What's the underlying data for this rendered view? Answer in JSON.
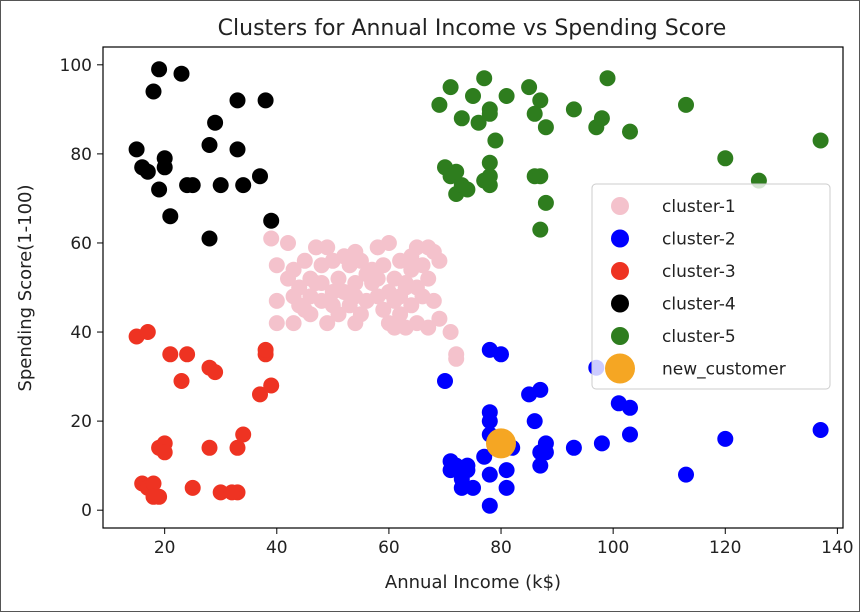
{
  "chart_data": {
    "type": "scatter",
    "title": "Clusters for Annual Income vs Spending Score",
    "xlabel": "Annual Income (k$)",
    "ylabel": "Spending Score(1-100)",
    "xlim": [
      9,
      141
    ],
    "ylim": [
      -4,
      104
    ],
    "xticks": [
      20,
      40,
      60,
      80,
      100,
      120,
      140
    ],
    "yticks": [
      0,
      20,
      40,
      60,
      80,
      100
    ],
    "grid": false,
    "legend_position": "right",
    "series": [
      {
        "name": "cluster-1",
        "color": "#f4c2cc",
        "points": [
          [
            39,
            61
          ],
          [
            40,
            55
          ],
          [
            40,
            47
          ],
          [
            40,
            42
          ],
          [
            42,
            52
          ],
          [
            42,
            60
          ],
          [
            43,
            54
          ],
          [
            43,
            48
          ],
          [
            43,
            42
          ],
          [
            44,
            50
          ],
          [
            44,
            46
          ],
          [
            45,
            56
          ],
          [
            46,
            52
          ],
          [
            46,
            48
          ],
          [
            46,
            44
          ],
          [
            47,
            59
          ],
          [
            48,
            55
          ],
          [
            48,
            47
          ],
          [
            48,
            51
          ],
          [
            49,
            59
          ],
          [
            49,
            42
          ],
          [
            50,
            56
          ],
          [
            50,
            49
          ],
          [
            50,
            46
          ],
          [
            51,
            52
          ],
          [
            52,
            57
          ],
          [
            52,
            49
          ],
          [
            53,
            55
          ],
          [
            54,
            58
          ],
          [
            54,
            48
          ],
          [
            54,
            51
          ],
          [
            54,
            42
          ],
          [
            55,
            44
          ],
          [
            55,
            56
          ],
          [
            56,
            47
          ],
          [
            57,
            54
          ],
          [
            57,
            51
          ],
          [
            58,
            59
          ],
          [
            58,
            48
          ],
          [
            59,
            55
          ],
          [
            60,
            60
          ],
          [
            60,
            49
          ],
          [
            60,
            42
          ],
          [
            61,
            52
          ],
          [
            61,
            47
          ],
          [
            61,
            41
          ],
          [
            62,
            56
          ],
          [
            62,
            44
          ],
          [
            63,
            41
          ],
          [
            63,
            51
          ],
          [
            64,
            57
          ],
          [
            64,
            46
          ],
          [
            65,
            59
          ],
          [
            65,
            50
          ],
          [
            65,
            42
          ],
          [
            66,
            55
          ],
          [
            66,
            48
          ],
          [
            67,
            59
          ],
          [
            67,
            52
          ],
          [
            67,
            41
          ],
          [
            68,
            58
          ],
          [
            69,
            43
          ],
          [
            69,
            56
          ],
          [
            71,
            40
          ],
          [
            72,
            35
          ],
          [
            72,
            34
          ],
          [
            64,
            54
          ],
          [
            62,
            48
          ],
          [
            59,
            45
          ],
          [
            56,
            53
          ],
          [
            53,
            46
          ],
          [
            51,
            44
          ],
          [
            47,
            51
          ],
          [
            45,
            45
          ],
          [
            58,
            52
          ],
          [
            68,
            47
          ],
          [
            63,
            50
          ]
        ]
      },
      {
        "name": "cluster-2",
        "color": "#0000ff",
        "points": [
          [
            70,
            29
          ],
          [
            71,
            11
          ],
          [
            71,
            9
          ],
          [
            72,
            10
          ],
          [
            73,
            5
          ],
          [
            73,
            7
          ],
          [
            74,
            10
          ],
          [
            75,
            5
          ],
          [
            77,
            12
          ],
          [
            78,
            36
          ],
          [
            78,
            22
          ],
          [
            78,
            20
          ],
          [
            78,
            17
          ],
          [
            78,
            1
          ],
          [
            79,
            14
          ],
          [
            80,
            35
          ],
          [
            81,
            5
          ],
          [
            81,
            9
          ],
          [
            82,
            14
          ],
          [
            85,
            26
          ],
          [
            86,
            20
          ],
          [
            87,
            27
          ],
          [
            87,
            10
          ],
          [
            87,
            13
          ],
          [
            88,
            15
          ],
          [
            88,
            13
          ],
          [
            93,
            14
          ],
          [
            97,
            32
          ],
          [
            98,
            15
          ],
          [
            101,
            24
          ],
          [
            103,
            23
          ],
          [
            103,
            17
          ],
          [
            113,
            8
          ],
          [
            120,
            16
          ],
          [
            137,
            18
          ],
          [
            78,
            8
          ],
          [
            74,
            9
          ]
        ]
      },
      {
        "name": "cluster-3",
        "color": "#ee3322",
        "points": [
          [
            15,
            39
          ],
          [
            16,
            6
          ],
          [
            17,
            40
          ],
          [
            17,
            5
          ],
          [
            18,
            6
          ],
          [
            19,
            3
          ],
          [
            19,
            14
          ],
          [
            20,
            15
          ],
          [
            20,
            13
          ],
          [
            21,
            35
          ],
          [
            23,
            29
          ],
          [
            24,
            35
          ],
          [
            25,
            5
          ],
          [
            28,
            32
          ],
          [
            28,
            14
          ],
          [
            29,
            31
          ],
          [
            30,
            4
          ],
          [
            33,
            4
          ],
          [
            33,
            14
          ],
          [
            34,
            17
          ],
          [
            37,
            26
          ],
          [
            38,
            35
          ],
          [
            38,
            36
          ],
          [
            39,
            28
          ],
          [
            18,
            3
          ],
          [
            32,
            4
          ]
        ]
      },
      {
        "name": "cluster-4",
        "color": "#000000",
        "points": [
          [
            15,
            81
          ],
          [
            16,
            77
          ],
          [
            17,
            76
          ],
          [
            18,
            94
          ],
          [
            19,
            99
          ],
          [
            19,
            72
          ],
          [
            20,
            77
          ],
          [
            20,
            79
          ],
          [
            21,
            66
          ],
          [
            23,
            98
          ],
          [
            24,
            73
          ],
          [
            25,
            73
          ],
          [
            28,
            82
          ],
          [
            28,
            61
          ],
          [
            29,
            87
          ],
          [
            30,
            73
          ],
          [
            33,
            92
          ],
          [
            33,
            81
          ],
          [
            34,
            73
          ],
          [
            37,
            75
          ],
          [
            38,
            92
          ],
          [
            39,
            65
          ]
        ]
      },
      {
        "name": "cluster-5",
        "color": "#2e7d1e",
        "points": [
          [
            69,
            91
          ],
          [
            70,
            77
          ],
          [
            71,
            95
          ],
          [
            71,
            75
          ],
          [
            72,
            71
          ],
          [
            73,
            88
          ],
          [
            73,
            73
          ],
          [
            75,
            93
          ],
          [
            76,
            87
          ],
          [
            77,
            97
          ],
          [
            77,
            74
          ],
          [
            78,
            90
          ],
          [
            78,
            89
          ],
          [
            78,
            78
          ],
          [
            78,
            73
          ],
          [
            79,
            83
          ],
          [
            81,
            93
          ],
          [
            85,
            95
          ],
          [
            86,
            75
          ],
          [
            87,
            75
          ],
          [
            87,
            63
          ],
          [
            87,
            92
          ],
          [
            88,
            86
          ],
          [
            88,
            69
          ],
          [
            93,
            90
          ],
          [
            97,
            86
          ],
          [
            98,
            88
          ],
          [
            99,
            97
          ],
          [
            103,
            85
          ],
          [
            113,
            91
          ],
          [
            120,
            79
          ],
          [
            126,
            74
          ],
          [
            137,
            83
          ],
          [
            74,
            72
          ],
          [
            72,
            76
          ],
          [
            78,
            75
          ],
          [
            86,
            89
          ]
        ]
      },
      {
        "name": "new_customer",
        "color": "#f5a623",
        "points": [
          [
            80,
            15
          ]
        ]
      }
    ]
  }
}
